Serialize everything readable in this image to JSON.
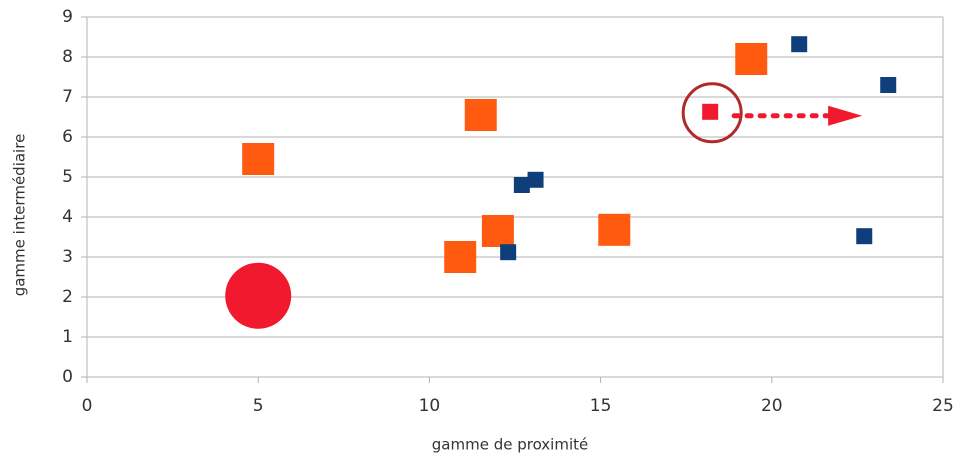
{
  "chart_data": {
    "type": "scatter",
    "xlabel": "gamme de proximité",
    "ylabel": "gamme intermédiaire",
    "xlim": [
      0,
      25
    ],
    "xticks": [
      0,
      5,
      10,
      15,
      20,
      25
    ],
    "ylim": [
      0,
      9
    ],
    "yticks": [
      0,
      1,
      2,
      3,
      4,
      5,
      6,
      7,
      8,
      9
    ],
    "grid": true,
    "series": [
      {
        "color": "#ff5a10",
        "marker": "square",
        "x": [
          5,
          11.5,
          19.4,
          12.0,
          10.9,
          15.4
        ],
        "values": [
          5.45,
          6.55,
          7.95,
          3.65,
          3.0,
          3.68
        ]
      },
      {
        "color": "#0f3f7a",
        "marker": "square",
        "x": [
          20.8,
          23.4,
          22.7,
          13.1,
          12.7,
          12.3
        ],
        "values": [
          8.32,
          7.3,
          3.52,
          4.93,
          4.8,
          3.12
        ]
      },
      {
        "color": "#f0192e",
        "marker": "circle",
        "x": [
          5.0
        ],
        "values": [
          2.03
        ]
      },
      {
        "color": "#f0192e",
        "marker": "square",
        "x": [
          18.2
        ],
        "values": [
          6.63
        ]
      }
    ]
  }
}
